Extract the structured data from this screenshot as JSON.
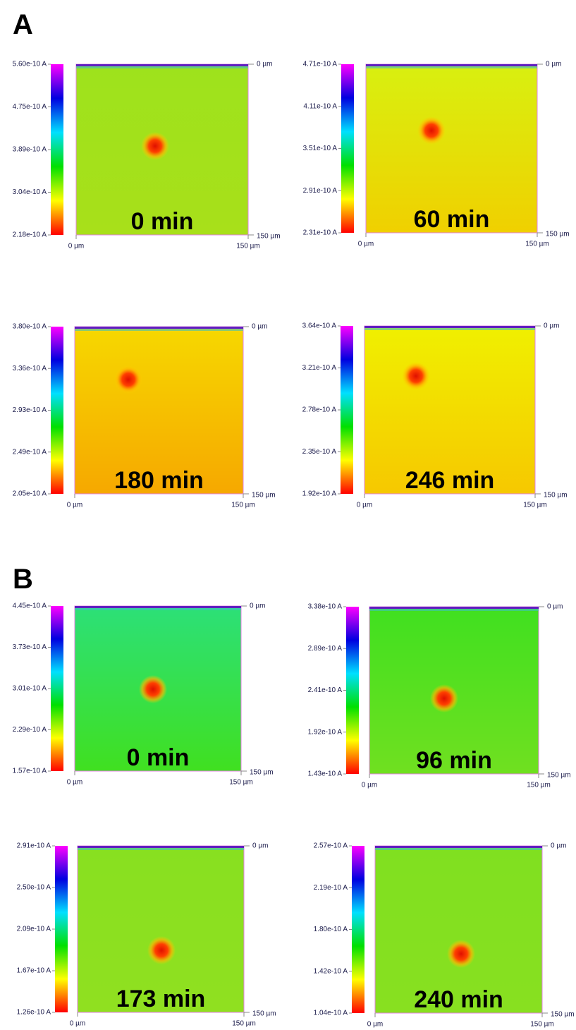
{
  "sections": [
    {
      "label": "A",
      "panels": [
        {
          "ticks": [
            "5.60e-10 A",
            "4.75e-10 A",
            "3.89e-10 A",
            "3.04e-10 A",
            "2.18e-10 A"
          ],
          "time": "0 min",
          "y_top": "0 µm",
          "y_bottom": "150 µm",
          "x_left": "0 µm",
          "x_right": "150 µm"
        },
        {
          "ticks": [
            "4.71e-10 A",
            "4.11e-10 A",
            "3.51e-10 A",
            "2.91e-10 A",
            "2.31e-10 A"
          ],
          "time": "60 min",
          "y_top": "0 µm",
          "y_bottom": "150 µm",
          "x_left": "0 µm",
          "x_right": "150 µm"
        },
        {
          "ticks": [
            "3.80e-10 A",
            "3.36e-10 A",
            "2.93e-10 A",
            "2.49e-10 A",
            "2.05e-10 A"
          ],
          "time": "180 min",
          "y_top": "0 µm",
          "y_bottom": "150 µm",
          "x_left": "0 µm",
          "x_right": "150 µm"
        },
        {
          "ticks": [
            "3.64e-10 A",
            "3.21e-10 A",
            "2.78e-10 A",
            "2.35e-10 A",
            "1.92e-10 A"
          ],
          "time": "246 min",
          "y_top": "0 µm",
          "y_bottom": "150 µm",
          "x_left": "0 µm",
          "x_right": "150 µm"
        }
      ]
    },
    {
      "label": "B",
      "panels": [
        {
          "ticks": [
            "4.45e-10 A",
            "3.73e-10 A",
            "3.01e-10 A",
            "2.29e-10 A",
            "1.57e-10 A"
          ],
          "time": "0 min",
          "y_top": "0 µm",
          "y_bottom": "150 µm",
          "x_left": "0 µm",
          "x_right": "150 µm"
        },
        {
          "ticks": [
            "3.38e-10 A",
            "2.89e-10 A",
            "2.41e-10 A",
            "1.92e-10 A",
            "1.43e-10 A"
          ],
          "time": "96 min",
          "y_top": "0 µm",
          "y_bottom": "150 µm",
          "x_left": "0 µm",
          "x_right": "150 µm"
        },
        {
          "ticks": [
            "2.91e-10 A",
            "2.50e-10 A",
            "2.09e-10 A",
            "1.67e-10 A",
            "1.26e-10 A"
          ],
          "time": "173 min",
          "y_top": "0 µm",
          "y_bottom": "150 µm",
          "x_left": "0 µm",
          "x_right": "150 µm"
        },
        {
          "ticks": [
            "2.57e-10 A",
            "2.19e-10 A",
            "1.80e-10 A",
            "1.42e-10 A",
            "1.04e-10 A"
          ],
          "time": "240 min",
          "y_top": "0 µm",
          "y_bottom": "150 µm",
          "x_left": "0 µm",
          "x_right": "150 µm"
        }
      ]
    }
  ]
}
